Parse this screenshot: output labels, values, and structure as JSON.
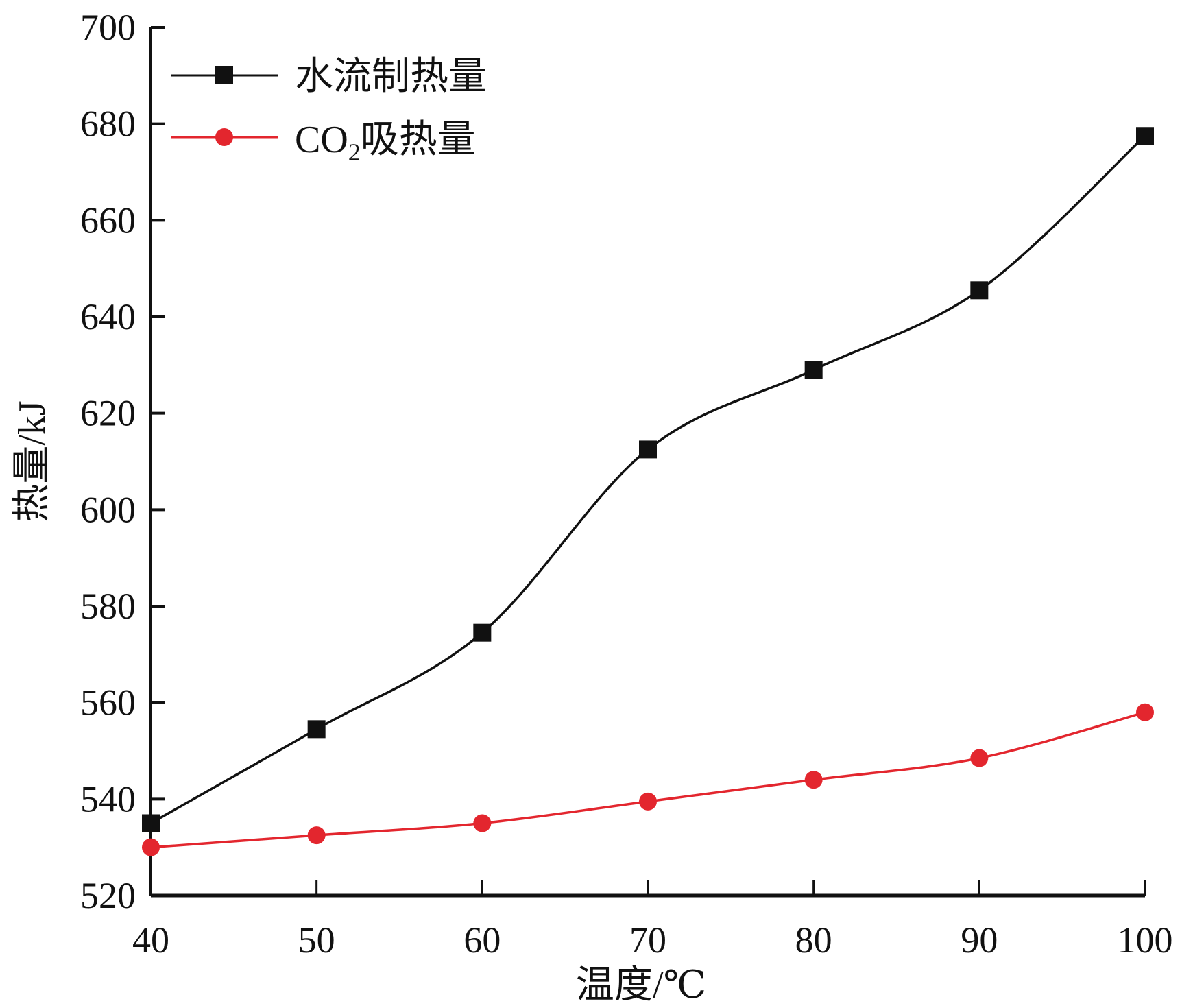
{
  "chart_data": {
    "type": "line",
    "title": "",
    "xlabel": "温度/℃",
    "ylabel": "热量/kJ",
    "xlim": [
      40,
      100
    ],
    "ylim": [
      520,
      700
    ],
    "x": [
      40,
      50,
      60,
      70,
      80,
      90,
      100
    ],
    "xticks": [
      "40",
      "50",
      "60",
      "70",
      "80",
      "90",
      "100"
    ],
    "yticks": [
      "520",
      "540",
      "560",
      "580",
      "600",
      "620",
      "640",
      "660",
      "680",
      "700"
    ],
    "grid": false,
    "legend_position": "top-left",
    "series": [
      {
        "name": "水流制热量",
        "marker": "square",
        "color": "#111111",
        "values": [
          535,
          554.5,
          574.5,
          612.5,
          629,
          645.5,
          677.5
        ]
      },
      {
        "name": "CO2吸热量",
        "name_main": "CO",
        "name_sub": "2",
        "name_rest": "吸热量",
        "marker": "circle",
        "color": "#e3262e",
        "values": [
          530,
          532.5,
          535,
          539.5,
          544,
          548.5,
          558
        ]
      }
    ]
  }
}
